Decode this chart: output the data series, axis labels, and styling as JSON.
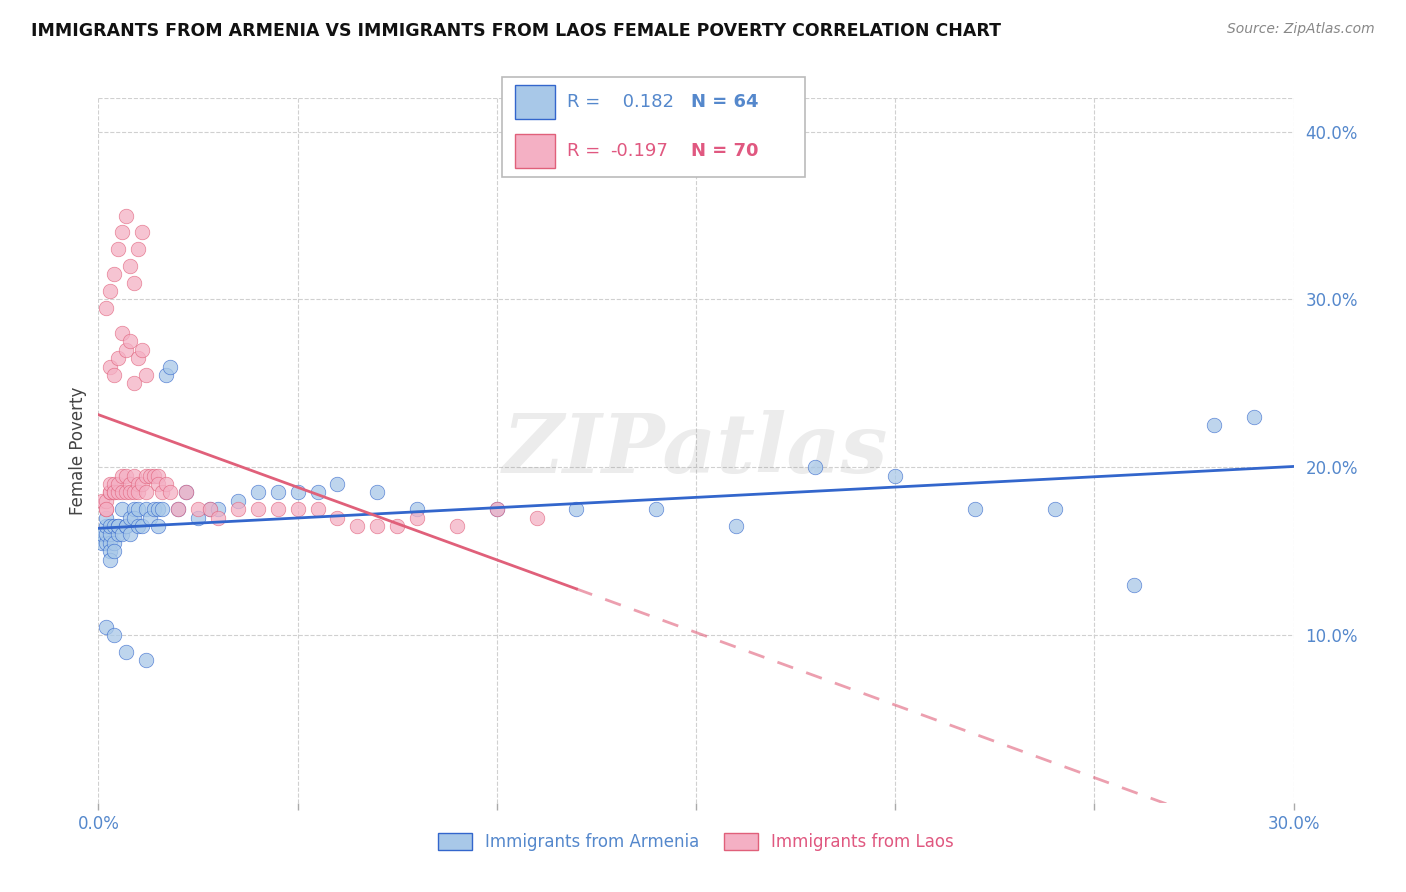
{
  "title": "IMMIGRANTS FROM ARMENIA VS IMMIGRANTS FROM LAOS FEMALE POVERTY CORRELATION CHART",
  "source": "Source: ZipAtlas.com",
  "ylabel": "Female Poverty",
  "legend_label_1": "Immigrants from Armenia",
  "legend_label_2": "Immigrants from Laos",
  "R1": 0.182,
  "N1": 64,
  "R2": -0.197,
  "N2": 70,
  "color_armenia": "#A8C8E8",
  "color_laos": "#F4B0C4",
  "color_armenia_line": "#3366CC",
  "color_laos_line": "#E0607A",
  "xlim": [
    0.0,
    0.3
  ],
  "ylim": [
    0.0,
    0.42
  ],
  "xtick_ends": [
    0.0,
    0.3
  ],
  "xtick_minor": [
    0.05,
    0.1,
    0.15,
    0.2,
    0.25
  ],
  "yticks_right": [
    0.1,
    0.2,
    0.3,
    0.4
  ],
  "watermark": "ZIPatlas",
  "armenia_x": [
    0.001,
    0.001,
    0.002,
    0.002,
    0.002,
    0.002,
    0.003,
    0.003,
    0.003,
    0.003,
    0.003,
    0.004,
    0.004,
    0.004,
    0.005,
    0.005,
    0.005,
    0.006,
    0.006,
    0.007,
    0.007,
    0.008,
    0.008,
    0.009,
    0.009,
    0.01,
    0.01,
    0.011,
    0.012,
    0.013,
    0.014,
    0.015,
    0.015,
    0.016,
    0.017,
    0.018,
    0.02,
    0.022,
    0.025,
    0.028,
    0.03,
    0.035,
    0.04,
    0.045,
    0.05,
    0.055,
    0.06,
    0.07,
    0.08,
    0.1,
    0.12,
    0.14,
    0.16,
    0.18,
    0.2,
    0.22,
    0.24,
    0.26,
    0.28,
    0.29,
    0.002,
    0.004,
    0.007,
    0.012
  ],
  "armenia_y": [
    0.155,
    0.16,
    0.155,
    0.16,
    0.165,
    0.17,
    0.155,
    0.16,
    0.165,
    0.15,
    0.145,
    0.155,
    0.15,
    0.165,
    0.16,
    0.165,
    0.165,
    0.16,
    0.175,
    0.165,
    0.165,
    0.16,
    0.17,
    0.175,
    0.17,
    0.165,
    0.175,
    0.165,
    0.175,
    0.17,
    0.175,
    0.165,
    0.175,
    0.175,
    0.255,
    0.26,
    0.175,
    0.185,
    0.17,
    0.175,
    0.175,
    0.18,
    0.185,
    0.185,
    0.185,
    0.185,
    0.19,
    0.185,
    0.175,
    0.175,
    0.175,
    0.175,
    0.165,
    0.2,
    0.195,
    0.175,
    0.175,
    0.13,
    0.225,
    0.23,
    0.105,
    0.1,
    0.09,
    0.085
  ],
  "laos_x": [
    0.001,
    0.002,
    0.002,
    0.002,
    0.003,
    0.003,
    0.003,
    0.004,
    0.004,
    0.004,
    0.005,
    0.005,
    0.006,
    0.006,
    0.007,
    0.007,
    0.008,
    0.008,
    0.009,
    0.009,
    0.01,
    0.01,
    0.011,
    0.012,
    0.012,
    0.013,
    0.014,
    0.015,
    0.015,
    0.016,
    0.017,
    0.018,
    0.02,
    0.022,
    0.025,
    0.028,
    0.03,
    0.035,
    0.04,
    0.045,
    0.05,
    0.055,
    0.06,
    0.065,
    0.07,
    0.075,
    0.08,
    0.09,
    0.1,
    0.11,
    0.003,
    0.004,
    0.005,
    0.006,
    0.007,
    0.008,
    0.009,
    0.01,
    0.011,
    0.012,
    0.002,
    0.003,
    0.004,
    0.005,
    0.006,
    0.007,
    0.008,
    0.009,
    0.01,
    0.011
  ],
  "laos_y": [
    0.18,
    0.175,
    0.18,
    0.175,
    0.185,
    0.185,
    0.19,
    0.185,
    0.19,
    0.185,
    0.185,
    0.19,
    0.195,
    0.185,
    0.185,
    0.195,
    0.19,
    0.185,
    0.185,
    0.195,
    0.19,
    0.185,
    0.19,
    0.195,
    0.185,
    0.195,
    0.195,
    0.195,
    0.19,
    0.185,
    0.19,
    0.185,
    0.175,
    0.185,
    0.175,
    0.175,
    0.17,
    0.175,
    0.175,
    0.175,
    0.175,
    0.175,
    0.17,
    0.165,
    0.165,
    0.165,
    0.17,
    0.165,
    0.175,
    0.17,
    0.26,
    0.255,
    0.265,
    0.28,
    0.27,
    0.275,
    0.25,
    0.265,
    0.27,
    0.255,
    0.295,
    0.305,
    0.315,
    0.33,
    0.34,
    0.35,
    0.32,
    0.31,
    0.33,
    0.34
  ]
}
